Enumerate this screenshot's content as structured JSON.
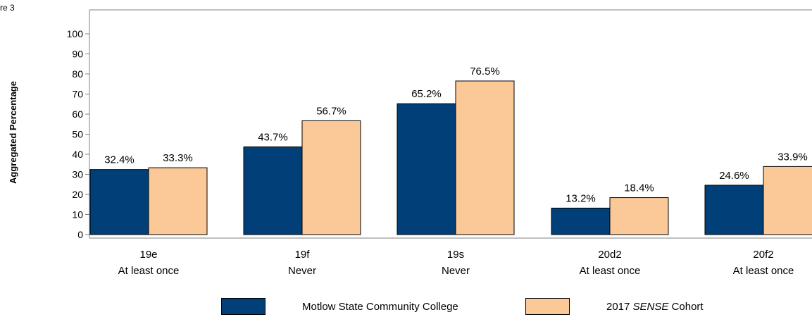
{
  "figure_label": "re 3",
  "colors": {
    "series1": "#003f78",
    "series2": "#fbc998",
    "axis": "#808080"
  },
  "chart_data": {
    "type": "bar",
    "ylabel": "Aggregated Percentage",
    "ylim": [
      0,
      100
    ],
    "yticks": [
      0,
      10,
      20,
      30,
      40,
      50,
      60,
      70,
      80,
      90,
      100
    ],
    "categories": [
      {
        "code": "19e",
        "label": "At least once"
      },
      {
        "code": "19f",
        "label": "Never"
      },
      {
        "code": "19s",
        "label": "Never"
      },
      {
        "code": "20d2",
        "label": "At least once"
      },
      {
        "code": "20f2",
        "label": "At least once"
      }
    ],
    "series": [
      {
        "name": "Motlow State Community College",
        "values": [
          32.4,
          43.7,
          65.2,
          13.2,
          24.6
        ],
        "labels": [
          "32.4%",
          "43.7%",
          "65.2%",
          "13.2%",
          "24.6%"
        ]
      },
      {
        "name_prefix": "2017 ",
        "name_emph": "SENSE",
        "name_suffix": " Cohort",
        "values": [
          33.3,
          56.7,
          76.5,
          18.4,
          33.9
        ],
        "labels": [
          "33.3%",
          "56.7%",
          "76.5%",
          "18.4%",
          "33.9%"
        ]
      }
    ],
    "legend_position": "bottom",
    "grid": false
  }
}
